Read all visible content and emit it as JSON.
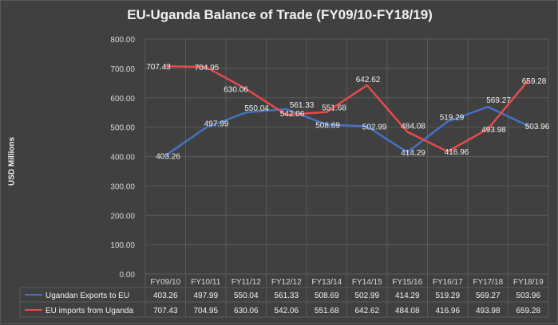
{
  "chart_data": {
    "type": "line",
    "title": "EU-Uganda Balance of Trade (FY09/10-FY18/19)",
    "ylabel": "USD Millions",
    "ylim": [
      0,
      800
    ],
    "yticks": [
      "0.00",
      "100.00",
      "200.00",
      "300.00",
      "400.00",
      "500.00",
      "600.00",
      "700.00",
      "800.00"
    ],
    "categories": [
      "FY09/10",
      "FY10/11",
      "FY11/12",
      "FY12/12",
      "FY13/14",
      "FY14/15",
      "FY15/16",
      "FY16/17",
      "FY17/18",
      "FY18/19"
    ],
    "grid": true,
    "legend": "bottom data table",
    "series": [
      {
        "name": "Ugandan Exports to EU",
        "color": "#4472c4",
        "values": [
          403.26,
          497.99,
          550.04,
          561.33,
          508.69,
          502.99,
          414.29,
          519.29,
          569.27,
          503.96
        ],
        "labels": [
          "403.26",
          "497.99",
          "550.04",
          "561.33",
          "508.69",
          "502.99",
          "414.29",
          "519.29",
          "569.27",
          "503.96"
        ]
      },
      {
        "name": "EU imports from Uganda",
        "color": "#e84a4a",
        "values": [
          707.43,
          704.95,
          630.06,
          542.06,
          551.68,
          642.62,
          484.08,
          416.96,
          493.98,
          659.28
        ],
        "labels": [
          "707.43",
          "704.95",
          "630.06",
          "542.06",
          "551.68",
          "642.62",
          "484.08",
          "416.96",
          "493.98",
          "659.28"
        ]
      }
    ]
  }
}
